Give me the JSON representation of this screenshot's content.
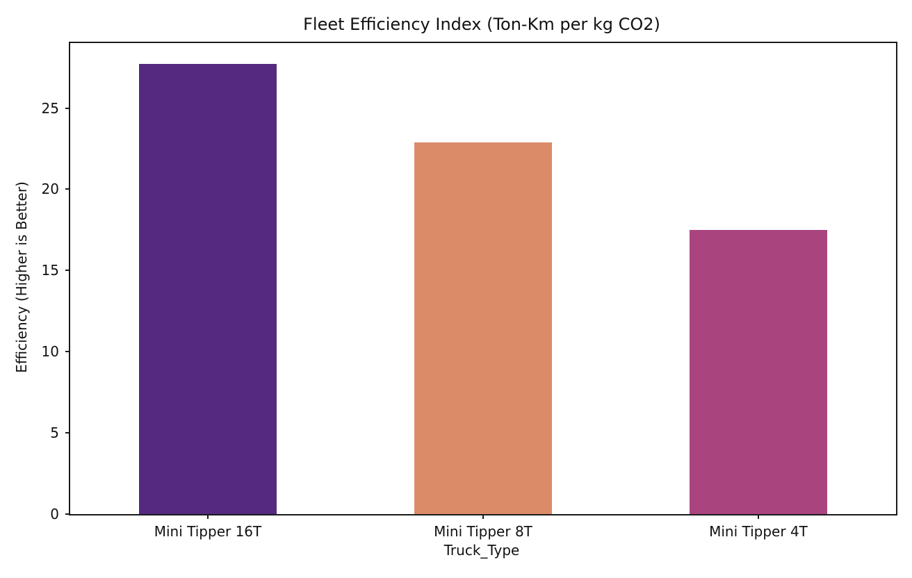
{
  "chart_data": {
    "type": "bar",
    "title": "Fleet Efficiency Index (Ton-Km per kg CO2)",
    "xlabel": "Truck_Type",
    "ylabel": "Efficiency (Higher is Better)",
    "categories": [
      "Mini Tipper 16T",
      "Mini Tipper 8T",
      "Mini Tipper 4T"
    ],
    "values": [
      27.7,
      22.9,
      17.5
    ],
    "bar_colors": [
      "#55297f",
      "#dc8b69",
      "#a9447e"
    ],
    "ylim": [
      0,
      29
    ],
    "yticks": [
      0,
      5,
      10,
      15,
      20,
      25
    ],
    "bar_width_fraction": 0.5,
    "grid": false,
    "legend": "none",
    "background_color": "#ffffff",
    "spine_color": "#1a1a1a"
  }
}
